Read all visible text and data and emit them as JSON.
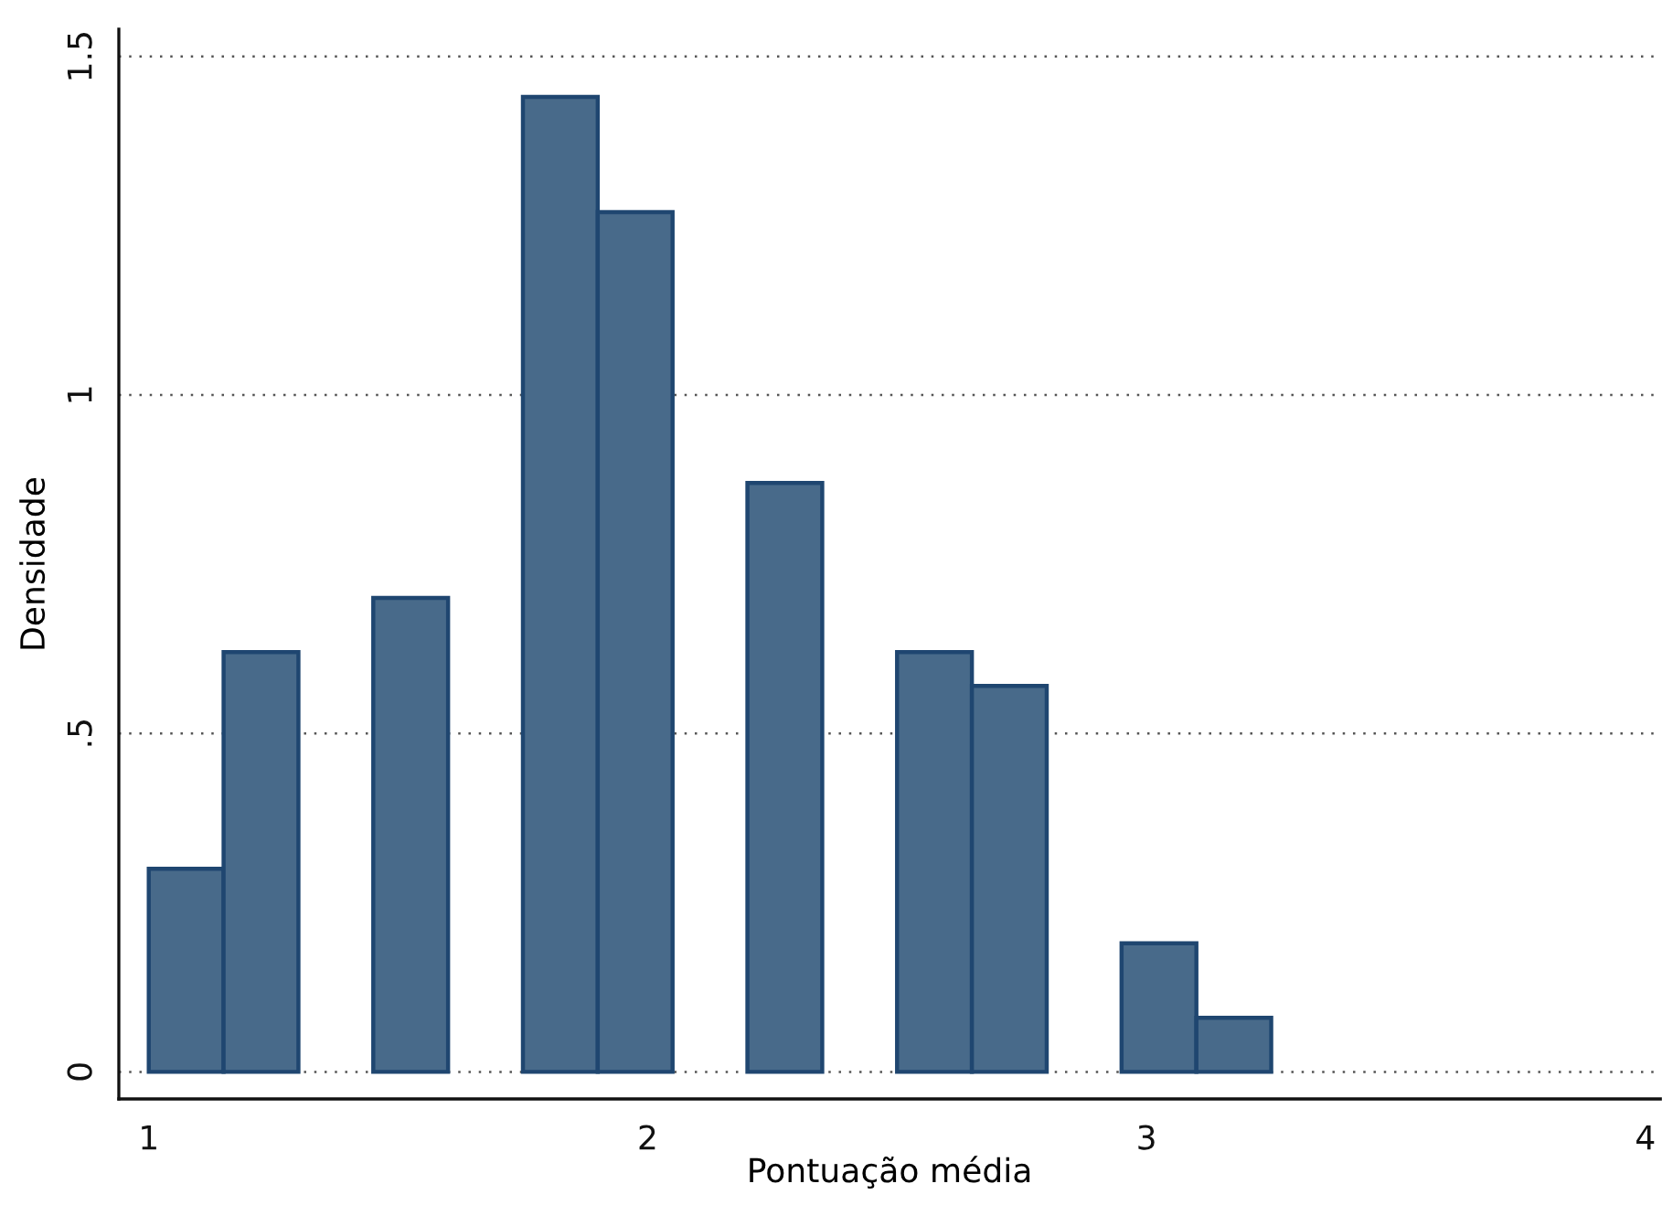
{
  "chart_data": {
    "type": "histogram",
    "xlabel": "Pontuação média",
    "ylabel": "Densidade",
    "bins": [
      1.0,
      1.15,
      1.3,
      1.45,
      1.6,
      1.75,
      1.9,
      2.05,
      2.2,
      2.35,
      2.5,
      2.65,
      2.8,
      2.95,
      3.1,
      3.25
    ],
    "values": [
      0.3,
      0.62,
      0,
      0.7,
      0,
      1.44,
      1.27,
      0,
      0.87,
      0,
      0.62,
      0.57,
      0,
      0.19,
      0.08
    ],
    "color": "#486a8a",
    "xlim": [
      0.94,
      4.03
    ],
    "xticks": [
      1,
      2,
      3,
      4
    ],
    "ylim": [
      -0.04,
      1.54
    ],
    "yticks": [
      0,
      {
        "value": 0.5,
        "label": ".5"
      },
      1,
      1.5
    ],
    "grid": "y"
  }
}
